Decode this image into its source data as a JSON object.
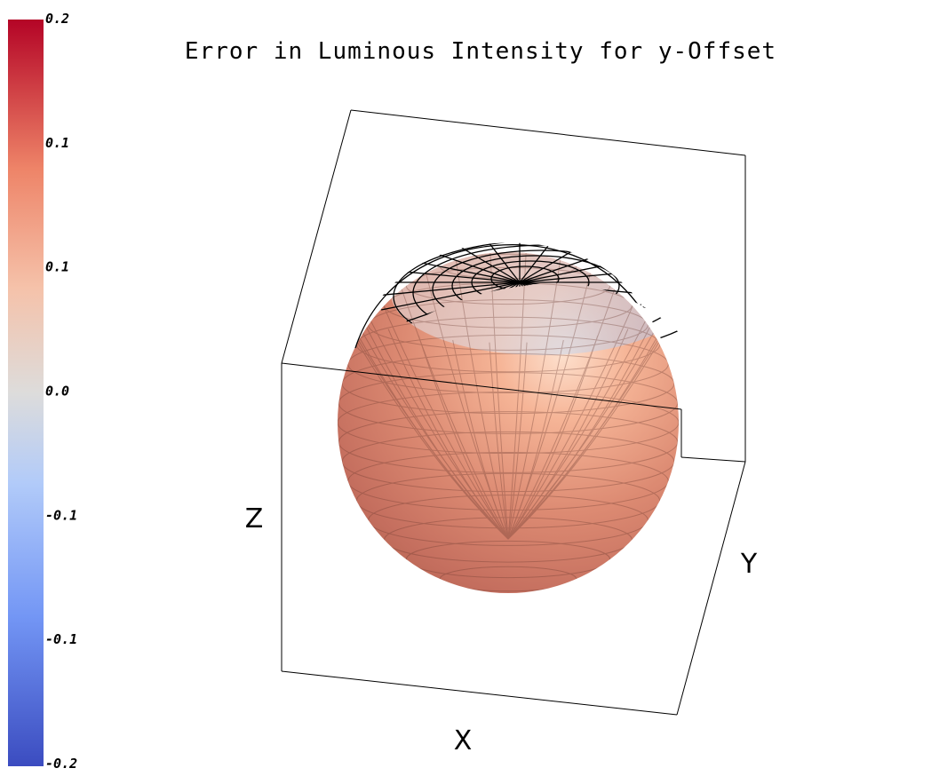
{
  "chart_data": {
    "type": "surface",
    "title": "Error in Luminous Intensity for y-Offset",
    "xlabel": "X",
    "ylabel": "Y",
    "zlabel": "Z",
    "surface": "sphere",
    "colormap": "coolwarm",
    "colorbar": {
      "position": "left",
      "min": -0.2,
      "max": 0.2,
      "tick_labels": [
        "0.2",
        "0.1",
        "0.1",
        "0.0",
        "-0.1",
        "-0.1",
        "-0.2"
      ]
    },
    "box": true,
    "wireframe_visible_on_top": true
  },
  "colors": {
    "cmap_low": "#3b4cc0",
    "cmap_mid": "#dddddd",
    "cmap_high": "#b40426",
    "sphere_base": "#d37a66",
    "sphere_highlight": "#fbcbb0",
    "wire": "#000000"
  }
}
